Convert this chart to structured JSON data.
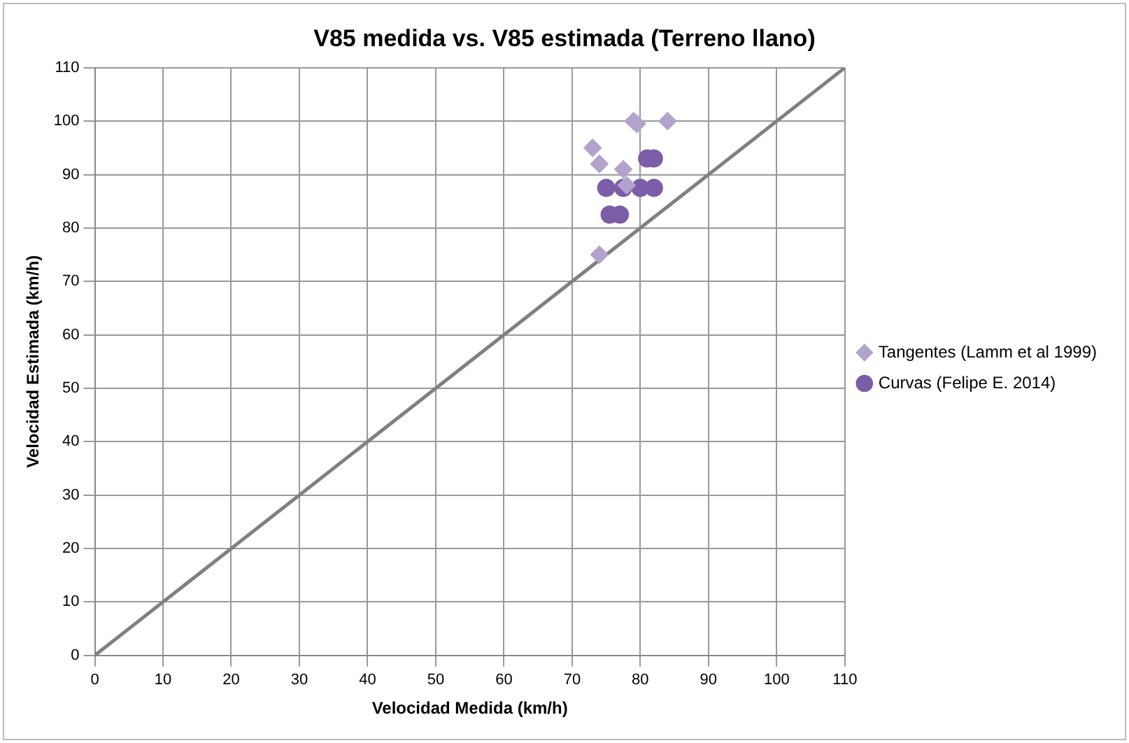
{
  "chart_data": {
    "type": "scatter",
    "title": "V85 medida vs. V85 estimada (Terreno llano)",
    "xlabel": "Velocidad Medida (km/h)",
    "ylabel": "Velocidad Estimada (km/h)",
    "xlim": [
      0,
      110
    ],
    "ylim": [
      0,
      110
    ],
    "xticks": [
      0,
      10,
      20,
      30,
      40,
      50,
      60,
      70,
      80,
      90,
      100,
      110
    ],
    "yticks": [
      0,
      10,
      20,
      30,
      40,
      50,
      60,
      70,
      80,
      90,
      100,
      110
    ],
    "grid": true,
    "legend": "right",
    "series": [
      {
        "name": "Curvas (Felipe E. 2014)",
        "color": "#7b5ea7",
        "marker": "circle",
        "x": [
          81,
          82,
          75,
          77.5,
          80,
          82,
          75.5,
          77
        ],
        "values": [
          93,
          93,
          87.5,
          87.5,
          87.5,
          87.5,
          82.5,
          82.5
        ]
      },
      {
        "name": "Tangentes (Lamm et al 1999)",
        "color": "#b2a2cc",
        "marker": "diamond",
        "x": [
          79,
          79.5,
          84,
          73,
          74,
          77.5,
          78,
          74
        ],
        "values": [
          100,
          99.5,
          100,
          95,
          92,
          91,
          88,
          75
        ]
      },
      {
        "type": "line",
        "color": "#808080",
        "marker": "none",
        "x": [
          0,
          110
        ],
        "values": [
          0,
          110
        ]
      }
    ]
  }
}
